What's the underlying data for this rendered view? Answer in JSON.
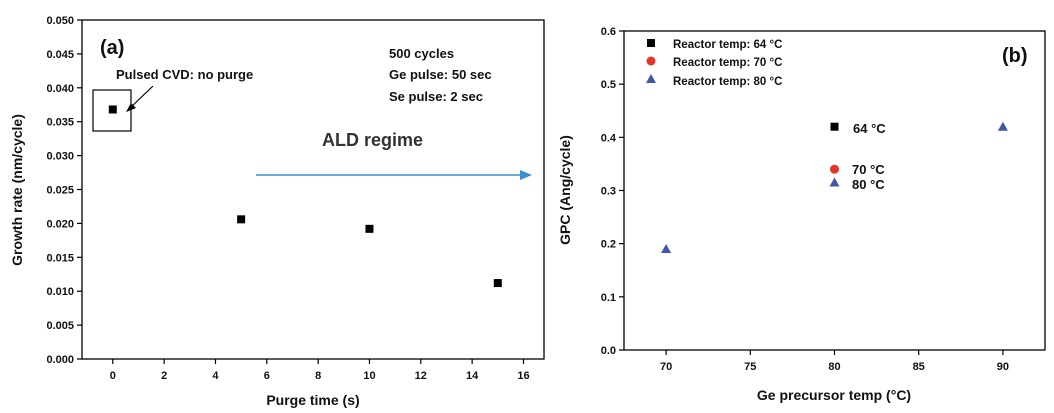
{
  "chart_data": [
    {
      "type": "scatter",
      "panel_label": "(a)",
      "xlabel": "Purge time (s)",
      "ylabel": "Growth rate (nm/cycle)",
      "xlim": [
        -1.2,
        16.8
      ],
      "ylim": [
        0.0,
        0.05
      ],
      "x_ticks": [
        "0",
        "2",
        "4",
        "6",
        "8",
        "10",
        "12",
        "14",
        "16"
      ],
      "y_ticks": [
        "0.000",
        "0.005",
        "0.010",
        "0.015",
        "0.020",
        "0.025",
        "0.030",
        "0.035",
        "0.040",
        "0.045",
        "0.050"
      ],
      "x_tick_values": [
        0,
        2,
        4,
        6,
        8,
        10,
        12,
        14,
        16
      ],
      "y_tick_values": [
        0,
        0.005,
        0.01,
        0.015,
        0.02,
        0.025,
        0.03,
        0.035,
        0.04,
        0.045,
        0.05
      ],
      "series": [
        {
          "marker": "square",
          "color": "#000000",
          "x": [
            0,
            5,
            10,
            15
          ],
          "y": [
            0.0368,
            0.0206,
            0.0192,
            0.0112
          ]
        }
      ],
      "annotations": {
        "pulsed": "Pulsed CVD: no purge",
        "cond1": "500 cycles",
        "cond2": "Ge pulse: 50 sec",
        "cond3": "Se pulse: 2 sec",
        "regime": "ALD regime"
      },
      "arrow_color": "#3a8fd0"
    },
    {
      "type": "scatter",
      "panel_label": "(b)",
      "xlabel": "Ge precursor temp (°C)",
      "ylabel": "GPC (Ang/cycle)",
      "xlim": [
        67.5,
        92.5
      ],
      "ylim": [
        0.0,
        0.6
      ],
      "x_ticks": [
        "70",
        "75",
        "80",
        "85",
        "90"
      ],
      "y_ticks": [
        "0.0",
        "0.1",
        "0.2",
        "0.3",
        "0.4",
        "0.5",
        "0.6"
      ],
      "x_tick_values": [
        70,
        75,
        80,
        85,
        90
      ],
      "y_tick_values": [
        0,
        0.1,
        0.2,
        0.3,
        0.4,
        0.5,
        0.6
      ],
      "series": [
        {
          "name": "Reactor temp: 64 °C",
          "marker": "square",
          "color": "#000000",
          "x": [
            80
          ],
          "y": [
            0.42
          ]
        },
        {
          "name": "Reactor temp: 70 °C",
          "marker": "circle",
          "color": "#e8332a",
          "x": [
            80
          ],
          "y": [
            0.34
          ]
        },
        {
          "name": "Reactor temp: 80 °C",
          "marker": "triangle",
          "color": "#3f57a6",
          "x": [
            70,
            80,
            90
          ],
          "y": [
            0.19,
            0.315,
            0.42
          ]
        }
      ],
      "point_labels": [
        "64 °C",
        "70 °C",
        "80 °C"
      ]
    }
  ]
}
